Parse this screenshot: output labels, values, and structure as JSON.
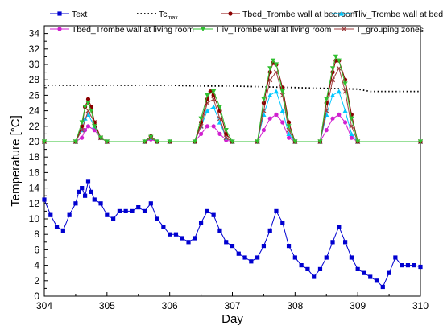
{
  "chart_data": {
    "type": "line",
    "xlabel": "Day",
    "ylabel": "Temperature [°C]",
    "xlim": [
      304,
      310
    ],
    "ylim": [
      0,
      35
    ],
    "xticks": [
      304,
      305,
      306,
      307,
      308,
      309,
      310
    ],
    "yticks": [
      0,
      2,
      4,
      6,
      8,
      10,
      12,
      14,
      16,
      18,
      20,
      22,
      24,
      26,
      28,
      30,
      32,
      34
    ],
    "grid": false,
    "legend_position": "top",
    "series": [
      {
        "name": "Text",
        "color": "#0000d0",
        "marker": "square",
        "x": [
          304.0,
          304.1,
          304.2,
          304.3,
          304.4,
          304.5,
          304.55,
          304.6,
          304.65,
          304.7,
          304.75,
          304.8,
          304.9,
          305.0,
          305.1,
          305.2,
          305.3,
          305.4,
          305.5,
          305.6,
          305.7,
          305.8,
          305.9,
          306.0,
          306.1,
          306.2,
          306.3,
          306.4,
          306.5,
          306.6,
          306.7,
          306.8,
          306.9,
          307.0,
          307.1,
          307.2,
          307.3,
          307.4,
          307.5,
          307.6,
          307.7,
          307.8,
          307.9,
          308.0,
          308.1,
          308.2,
          308.3,
          308.4,
          308.5,
          308.6,
          308.7,
          308.8,
          308.9,
          309.0,
          309.1,
          309.2,
          309.3,
          309.4,
          309.5,
          309.6,
          309.7,
          309.8,
          309.9,
          310.0
        ],
        "y": [
          12.5,
          10.5,
          9.0,
          8.5,
          10.5,
          12.0,
          13.5,
          14.0,
          13.0,
          14.8,
          13.5,
          12.5,
          12.0,
          10.5,
          10.0,
          11.0,
          11.0,
          11.0,
          11.5,
          11.0,
          12.0,
          10.0,
          9.0,
          8.0,
          8.0,
          7.5,
          7.0,
          7.5,
          9.5,
          11.0,
          10.5,
          8.5,
          7.0,
          6.5,
          5.5,
          5.0,
          4.5,
          5.0,
          6.5,
          8.5,
          11.0,
          9.5,
          6.5,
          5.0,
          4.0,
          3.5,
          2.5,
          3.5,
          5.0,
          7.0,
          9.0,
          7.0,
          5.0,
          3.5,
          3.0,
          2.5,
          2.0,
          1.2,
          3.0,
          5.0,
          4.0,
          4.0,
          4.0,
          3.8
        ]
      },
      {
        "name": "Tc_max",
        "color": "#000000",
        "marker": "dotted",
        "x": [
          304.0,
          305.0,
          306.0,
          306.5,
          307.0,
          307.5,
          308.0,
          308.5,
          309.0,
          309.2,
          309.5,
          310.0
        ],
        "y": [
          27.3,
          27.3,
          27.3,
          27.2,
          27.2,
          27.1,
          27.0,
          26.9,
          26.8,
          26.5,
          26.5,
          26.5
        ]
      },
      {
        "name": "Tbed_Trombe wall at bedroom",
        "color": "#8b0000",
        "marker": "circle",
        "x": [
          304.0,
          304.5,
          304.6,
          304.65,
          304.7,
          304.75,
          304.8,
          304.9,
          305.0,
          305.6,
          305.7,
          305.8,
          306.0,
          306.4,
          306.5,
          306.6,
          306.65,
          306.7,
          306.8,
          306.9,
          307.0,
          307.4,
          307.5,
          307.6,
          307.65,
          307.7,
          307.8,
          307.9,
          308.0,
          308.4,
          308.5,
          308.6,
          308.65,
          308.7,
          308.8,
          308.9,
          309.0,
          310.0
        ],
        "y": [
          20,
          20,
          22.0,
          24.5,
          25.5,
          24.5,
          22.5,
          20.5,
          20,
          20,
          20.7,
          20,
          20,
          20,
          22.5,
          25.5,
          26.5,
          26.0,
          24.0,
          21.0,
          20,
          20,
          25.0,
          29.0,
          30.2,
          30.0,
          27.0,
          22.5,
          20,
          20,
          25.0,
          29.0,
          30.5,
          30.5,
          28.0,
          23.5,
          20,
          20
        ]
      },
      {
        "name": "Tliv_Trombe wall at bedroom",
        "color": "#00c8ff",
        "marker": "triangle",
        "x": [
          304.0,
          304.5,
          304.6,
          304.65,
          304.7,
          304.8,
          304.9,
          305.0,
          305.6,
          305.7,
          305.8,
          306.0,
          306.4,
          306.5,
          306.6,
          306.7,
          306.8,
          306.9,
          307.0,
          307.4,
          307.5,
          307.6,
          307.7,
          307.8,
          307.9,
          308.0,
          308.4,
          308.5,
          308.6,
          308.7,
          308.8,
          308.9,
          309.0,
          310.0
        ],
        "y": [
          20,
          20,
          21.5,
          23.0,
          23.5,
          22.0,
          20.5,
          20,
          20,
          20.5,
          20,
          20,
          20,
          22.0,
          24.0,
          24.5,
          22.5,
          20.5,
          20,
          20,
          23.5,
          26.0,
          26.5,
          24.0,
          21.0,
          20,
          20,
          23.5,
          26.0,
          26.5,
          24.0,
          21.0,
          20,
          20
        ]
      },
      {
        "name": "Tbed_Trombe wall at living room",
        "color": "#d020d0",
        "marker": "circle",
        "x": [
          304.0,
          304.5,
          304.6,
          304.65,
          304.7,
          304.8,
          304.9,
          305.0,
          305.6,
          305.7,
          305.8,
          306.0,
          306.4,
          306.5,
          306.6,
          306.7,
          306.8,
          306.9,
          307.0,
          307.4,
          307.5,
          307.6,
          307.7,
          307.8,
          307.9,
          308.0,
          308.4,
          308.5,
          308.6,
          308.7,
          308.8,
          308.9,
          309.0,
          310.0
        ],
        "y": [
          20,
          20,
          20.5,
          21.5,
          22.0,
          21.5,
          20.5,
          20,
          20,
          20.3,
          20,
          20,
          20,
          21.0,
          22.0,
          22.0,
          21.0,
          20.2,
          20,
          20,
          21.5,
          23.0,
          23.5,
          22.5,
          20.5,
          20,
          20,
          21.5,
          23.0,
          23.5,
          22.5,
          20.5,
          20,
          20
        ]
      },
      {
        "name": "Tliv_Trombe wall at living room",
        "color": "#30c030",
        "marker": "triangle-down",
        "x": [
          304.0,
          304.5,
          304.6,
          304.65,
          304.7,
          304.75,
          304.8,
          304.9,
          305.0,
          305.6,
          305.7,
          305.8,
          306.0,
          306.4,
          306.5,
          306.6,
          306.7,
          306.8,
          306.9,
          307.0,
          307.4,
          307.5,
          307.6,
          307.65,
          307.7,
          307.8,
          307.9,
          308.0,
          308.4,
          308.5,
          308.6,
          308.65,
          308.7,
          308.8,
          308.9,
          309.0,
          310.0
        ],
        "y": [
          20,
          20,
          22.5,
          24.5,
          25.0,
          24.0,
          22.0,
          20.5,
          20,
          20,
          20.6,
          20,
          20,
          20,
          23.0,
          26.0,
          26.5,
          24.5,
          21.5,
          20,
          20,
          25.5,
          29.5,
          30.5,
          30.0,
          26.5,
          22.0,
          20,
          20,
          25.5,
          29.5,
          31.0,
          30.5,
          27.5,
          23.0,
          20,
          20
        ]
      },
      {
        "name": "T_grouping zones",
        "color": "#a04040",
        "marker": "x",
        "x": [
          304.0,
          304.5,
          304.6,
          304.7,
          304.8,
          304.9,
          305.0,
          305.6,
          305.7,
          305.8,
          306.0,
          306.4,
          306.5,
          306.6,
          306.7,
          306.8,
          306.9,
          307.0,
          307.4,
          307.5,
          307.6,
          307.7,
          307.8,
          307.9,
          308.0,
          308.4,
          308.5,
          308.6,
          308.7,
          308.8,
          308.9,
          309.0,
          310.0
        ],
        "y": [
          20,
          20,
          21.5,
          24.0,
          22.5,
          20.5,
          20,
          20,
          20.5,
          20,
          20,
          20,
          22.0,
          25.0,
          25.5,
          23.0,
          20.5,
          20,
          20,
          24.0,
          28.0,
          29.0,
          26.0,
          21.5,
          20,
          20,
          24.0,
          28.0,
          29.5,
          26.5,
          22.0,
          20,
          20
        ]
      }
    ],
    "legend": [
      {
        "label": "Text",
        "sub": ""
      },
      {
        "label": "Tc",
        "sub": "max"
      },
      {
        "label": "Tbed_Trombe wall at bedroom",
        "sub": ""
      },
      {
        "label": "Tliv_Trombe wall at bedroom",
        "sub": ""
      },
      {
        "label": "Tbed_Trombe wall at living room",
        "sub": ""
      },
      {
        "label": "Tliv_Trombe wall at living room",
        "sub": ""
      },
      {
        "label": "T_grouping zones",
        "sub": ""
      }
    ]
  }
}
